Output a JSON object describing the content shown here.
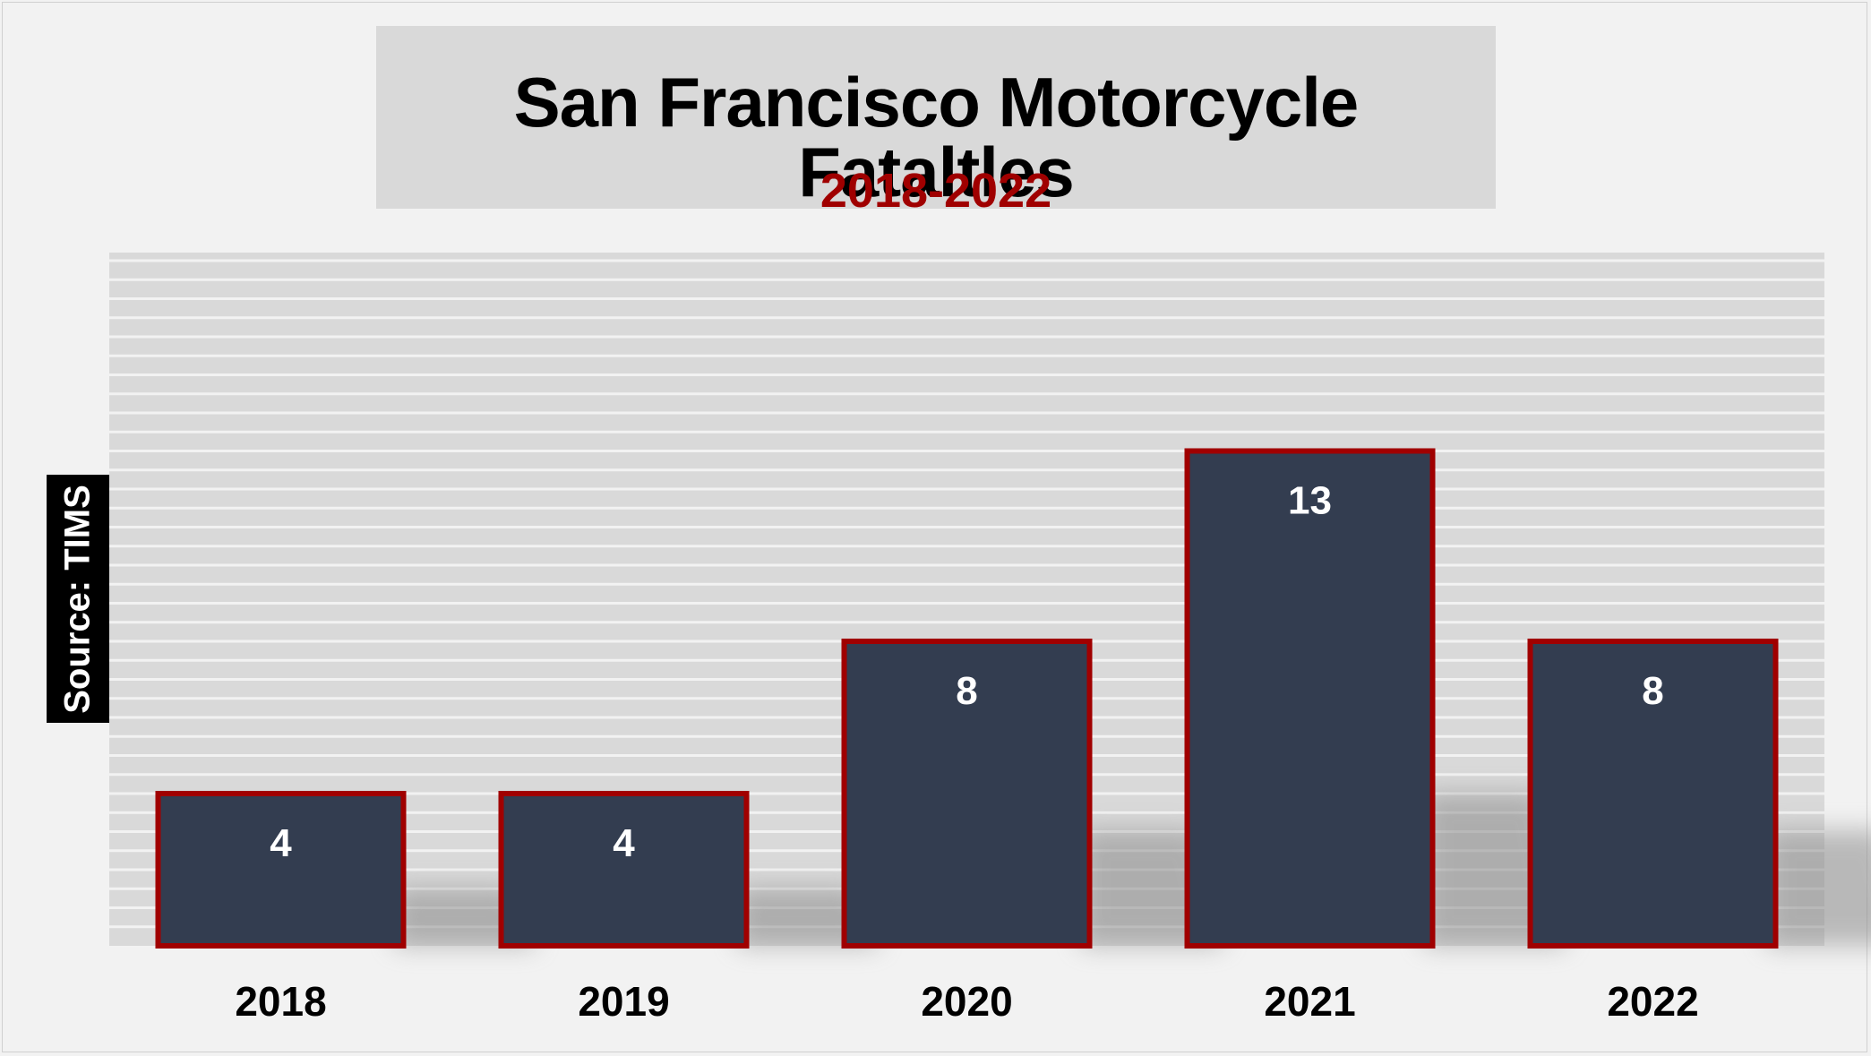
{
  "chart_data": {
    "type": "bar",
    "title": "San Francisco Motorcycle Fataltles",
    "subtitle": "2018-2022",
    "categories": [
      "2018",
      "2019",
      "2020",
      "2021",
      "2022"
    ],
    "values": [
      4,
      4,
      8,
      13,
      8
    ],
    "data_labels": [
      "4",
      "4",
      "8",
      "13",
      "8"
    ],
    "ylim": [
      0,
      14
    ],
    "xlabel": "",
    "ylabel": "",
    "grid": true,
    "legend": "none",
    "source_note": "Source: TIMS",
    "colors": {
      "bar_fill": "#333d50",
      "bar_border": "#a00000",
      "plot_background": "#d9d9d9",
      "gridline": "#f2f2f2",
      "subtitle": "#a00000",
      "page_background": "#f2f2f2"
    }
  }
}
